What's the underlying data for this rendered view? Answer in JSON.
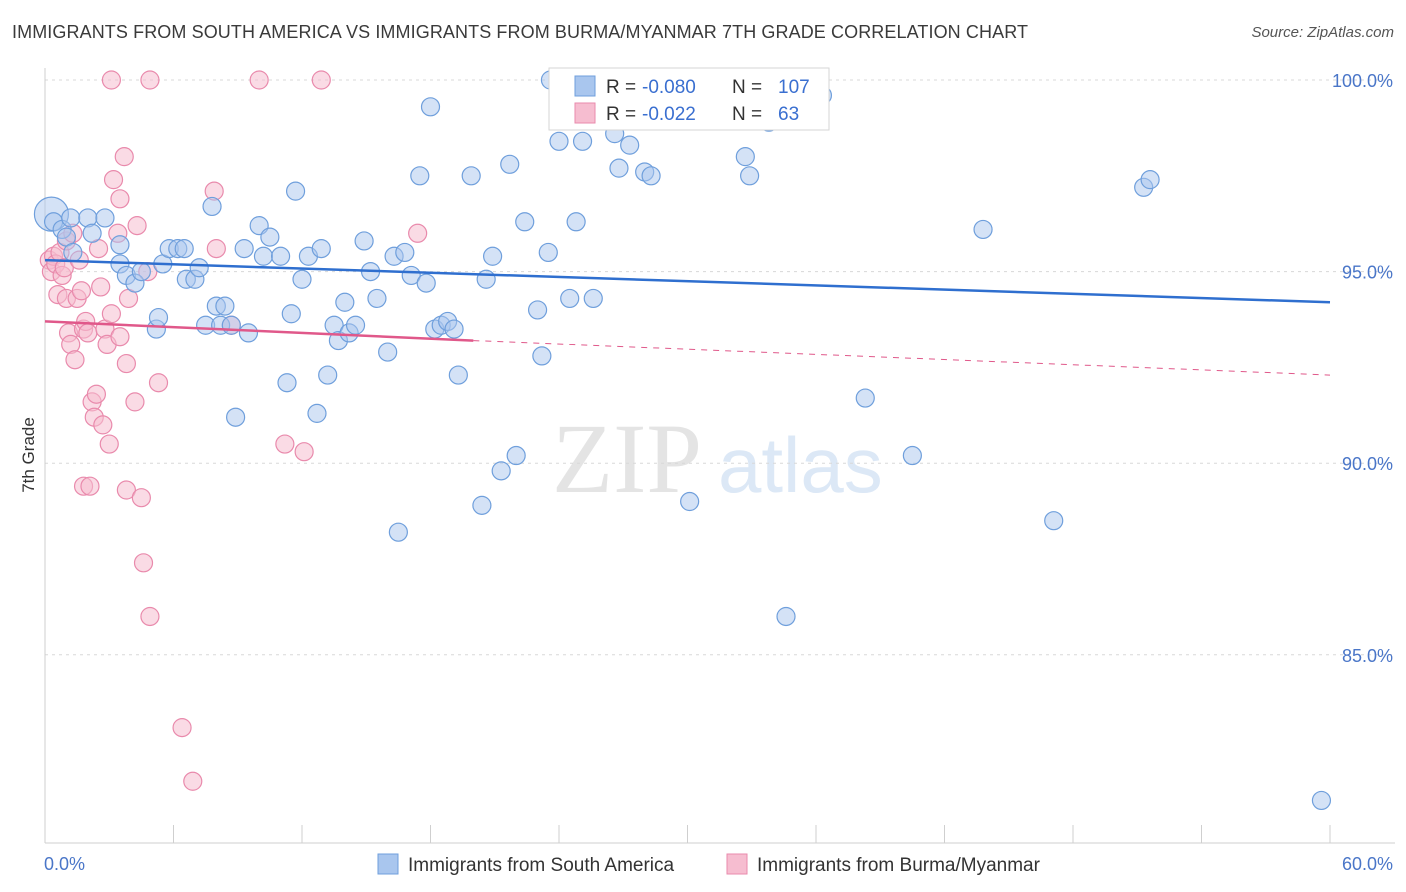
{
  "title": "IMMIGRANTS FROM SOUTH AMERICA VS IMMIGRANTS FROM BURMA/MYANMAR 7TH GRADE CORRELATION CHART",
  "source": "Source: ZipAtlas.com",
  "watermark": {
    "zip": "ZIP",
    "atlas": "atlas"
  },
  "colors": {
    "blue_fill": "#a9c6ee",
    "blue_stroke": "#6f9fdc",
    "blue_line": "#2f6fcf",
    "pink_fill": "#f6bdd0",
    "pink_stroke": "#e98aac",
    "pink_line": "#e0588a",
    "axis_text": "#4a76c8",
    "grid": "#d8d8d8"
  },
  "legend": {
    "rows": [
      {
        "r_label": "R =",
        "r_value": "-0.080",
        "n_label": "N =",
        "n_value": "107"
      },
      {
        "r_label": "R =",
        "r_value": "-0.022",
        "n_label": "N =",
        "n_value": "63"
      }
    ]
  },
  "chart_data": {
    "type": "scatter",
    "title": "IMMIGRANTS FROM SOUTH AMERICA VS IMMIGRANTS FROM BURMA/MYANMAR 7TH GRADE CORRELATION CHART",
    "xlabel": "",
    "ylabel": "7th Grade",
    "xlim": [
      0,
      60
    ],
    "ylim": [
      80.5,
      101.2
    ],
    "x_ticks_labels": [
      "0.0%",
      "60.0%"
    ],
    "y_ticks": [
      85,
      90,
      95,
      100
    ],
    "y_ticks_labels": [
      "85.0%",
      "90.0%",
      "95.0%",
      "100.0%"
    ],
    "grid": "horizontal dashed",
    "legend_position": "top-center",
    "series": [
      {
        "name": "Immigrants from South America",
        "color": "#a9c6ee",
        "R": -0.08,
        "N": 107,
        "trend": {
          "x": [
            0,
            60
          ],
          "y": [
            95.3,
            94.2
          ],
          "style": "solid"
        },
        "points": [
          [
            0.3,
            96.5
          ],
          [
            0.4,
            96.3
          ],
          [
            0.8,
            96.1
          ],
          [
            1.0,
            95.9
          ],
          [
            1.2,
            96.4
          ],
          [
            1.3,
            95.5
          ],
          [
            2.0,
            96.4
          ],
          [
            2.2,
            96.0
          ],
          [
            2.8,
            96.4
          ],
          [
            3.5,
            95.7
          ],
          [
            3.5,
            95.2
          ],
          [
            3.8,
            94.9
          ],
          [
            4.2,
            94.7
          ],
          [
            4.5,
            95.0
          ],
          [
            5.2,
            93.5
          ],
          [
            5.3,
            93.8
          ],
          [
            5.5,
            95.2
          ],
          [
            5.8,
            95.6
          ],
          [
            6.2,
            95.6
          ],
          [
            6.5,
            95.6
          ],
          [
            6.6,
            94.8
          ],
          [
            7.0,
            94.8
          ],
          [
            7.2,
            95.1
          ],
          [
            7.5,
            93.6
          ],
          [
            7.8,
            96.7
          ],
          [
            8.0,
            94.1
          ],
          [
            8.2,
            93.6
          ],
          [
            8.4,
            94.1
          ],
          [
            8.7,
            93.6
          ],
          [
            8.9,
            91.2
          ],
          [
            9.3,
            95.6
          ],
          [
            9.5,
            93.4
          ],
          [
            10.0,
            96.2
          ],
          [
            10.2,
            95.4
          ],
          [
            10.5,
            95.9
          ],
          [
            11.0,
            95.4
          ],
          [
            11.3,
            92.1
          ],
          [
            11.5,
            93.9
          ],
          [
            11.7,
            97.1
          ],
          [
            12.0,
            94.8
          ],
          [
            12.3,
            95.4
          ],
          [
            12.7,
            91.3
          ],
          [
            12.9,
            95.6
          ],
          [
            13.2,
            92.3
          ],
          [
            13.5,
            93.6
          ],
          [
            13.7,
            93.2
          ],
          [
            14.0,
            94.2
          ],
          [
            14.2,
            93.4
          ],
          [
            14.5,
            93.6
          ],
          [
            14.9,
            95.8
          ],
          [
            15.2,
            95.0
          ],
          [
            15.5,
            94.3
          ],
          [
            16.0,
            92.9
          ],
          [
            16.3,
            95.4
          ],
          [
            16.5,
            88.2
          ],
          [
            16.8,
            95.5
          ],
          [
            17.1,
            94.9
          ],
          [
            17.5,
            97.5
          ],
          [
            17.8,
            94.7
          ],
          [
            18.0,
            99.3
          ],
          [
            18.2,
            93.5
          ],
          [
            18.5,
            93.6
          ],
          [
            18.8,
            93.7
          ],
          [
            19.1,
            93.5
          ],
          [
            19.3,
            92.3
          ],
          [
            19.9,
            97.5
          ],
          [
            20.4,
            88.9
          ],
          [
            20.6,
            94.8
          ],
          [
            20.9,
            95.4
          ],
          [
            21.3,
            89.8
          ],
          [
            21.7,
            97.8
          ],
          [
            22.0,
            90.2
          ],
          [
            22.4,
            96.3
          ],
          [
            23.0,
            94.0
          ],
          [
            23.2,
            92.8
          ],
          [
            23.5,
            95.5
          ],
          [
            23.6,
            100.0
          ],
          [
            24.0,
            98.4
          ],
          [
            24.5,
            94.3
          ],
          [
            24.8,
            96.3
          ],
          [
            25.1,
            98.4
          ],
          [
            25.6,
            94.3
          ],
          [
            26.6,
            98.6
          ],
          [
            26.8,
            97.7
          ],
          [
            27.3,
            98.3
          ],
          [
            27.7,
            100.0
          ],
          [
            28.0,
            97.6
          ],
          [
            28.3,
            97.5
          ],
          [
            30.1,
            89.0
          ],
          [
            32.0,
            100.0
          ],
          [
            32.7,
            98.0
          ],
          [
            32.9,
            97.5
          ],
          [
            33.2,
            100.0
          ],
          [
            33.8,
            98.9
          ],
          [
            34.6,
            86.0
          ],
          [
            35.8,
            100.0
          ],
          [
            36.3,
            99.6
          ],
          [
            38.3,
            91.7
          ],
          [
            40.5,
            90.2
          ],
          [
            43.8,
            96.1
          ],
          [
            47.1,
            88.5
          ],
          [
            51.3,
            97.2
          ],
          [
            51.6,
            97.4
          ],
          [
            59.6,
            81.2
          ]
        ]
      },
      {
        "name": "Immigrants from Burma/Myanmar",
        "color": "#f6bdd0",
        "R": -0.022,
        "N": 63,
        "trend": {
          "x": [
            0,
            20
          ],
          "y": [
            93.7,
            93.2
          ],
          "extended_x": [
            0,
            60
          ],
          "extended_y": [
            93.7,
            92.3
          ],
          "style": "solid then dashed"
        },
        "points": [
          [
            0.2,
            95.3
          ],
          [
            0.3,
            95.0
          ],
          [
            0.4,
            95.4
          ],
          [
            0.5,
            95.2
          ],
          [
            0.6,
            94.4
          ],
          [
            0.7,
            95.5
          ],
          [
            0.8,
            94.9
          ],
          [
            0.9,
            95.1
          ],
          [
            1.0,
            95.8
          ],
          [
            1.0,
            94.3
          ],
          [
            1.1,
            93.4
          ],
          [
            1.2,
            93.1
          ],
          [
            1.3,
            96.0
          ],
          [
            1.4,
            92.7
          ],
          [
            1.5,
            94.3
          ],
          [
            1.6,
            95.3
          ],
          [
            1.7,
            94.5
          ],
          [
            1.8,
            93.5
          ],
          [
            1.8,
            89.4
          ],
          [
            1.9,
            93.7
          ],
          [
            2.0,
            93.4
          ],
          [
            2.1,
            89.4
          ],
          [
            2.2,
            91.6
          ],
          [
            2.3,
            91.2
          ],
          [
            2.4,
            91.8
          ],
          [
            2.5,
            95.6
          ],
          [
            2.6,
            94.6
          ],
          [
            2.7,
            91.0
          ],
          [
            2.8,
            93.5
          ],
          [
            2.9,
            93.1
          ],
          [
            3.0,
            90.5
          ],
          [
            3.1,
            93.9
          ],
          [
            3.1,
            100.0
          ],
          [
            3.2,
            97.4
          ],
          [
            3.4,
            96.0
          ],
          [
            3.5,
            93.3
          ],
          [
            3.5,
            96.9
          ],
          [
            3.7,
            98.0
          ],
          [
            3.8,
            92.6
          ],
          [
            3.8,
            89.3
          ],
          [
            3.9,
            94.3
          ],
          [
            4.2,
            91.6
          ],
          [
            4.3,
            96.2
          ],
          [
            4.5,
            89.1
          ],
          [
            4.6,
            87.4
          ],
          [
            4.8,
            95.0
          ],
          [
            4.9,
            86.0
          ],
          [
            4.9,
            100.0
          ],
          [
            5.3,
            92.1
          ],
          [
            6.4,
            83.1
          ],
          [
            6.9,
            81.7
          ],
          [
            7.9,
            97.1
          ],
          [
            8.0,
            95.6
          ],
          [
            8.7,
            93.6
          ],
          [
            10.0,
            100.0
          ],
          [
            11.2,
            90.5
          ],
          [
            12.1,
            90.3
          ],
          [
            12.9,
            100.0
          ],
          [
            17.4,
            96.0
          ]
        ]
      }
    ]
  },
  "bottom_legend": [
    {
      "label": "Immigrants from South America"
    },
    {
      "label": "Immigrants from Burma/Myanmar"
    }
  ]
}
